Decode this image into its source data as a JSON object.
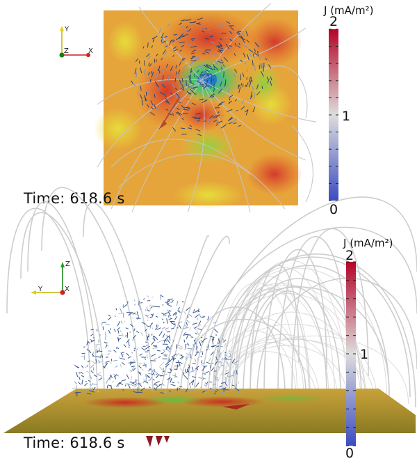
{
  "panels": [
    {
      "id": "top",
      "view": "top-down",
      "time_label": "Time: 618.6 s",
      "colorbar": {
        "title": "J (mA/m²)",
        "min": 0,
        "max": 2,
        "mid": 1,
        "tick_labels": [
          "2",
          "1",
          "0"
        ]
      },
      "axes": {
        "labels": [
          "Y",
          "Z",
          "X"
        ]
      }
    },
    {
      "id": "bottom",
      "view": "side",
      "time_label": "Time: 618.6 s",
      "colorbar": {
        "title": "J (mA/m²)",
        "min": 0,
        "max": 2,
        "mid": 1,
        "tick_labels": [
          "2",
          "1",
          "0"
        ]
      },
      "axes": {
        "labels": [
          "Z",
          "Y",
          "X"
        ]
      }
    }
  ],
  "colors": {
    "colorbar_high": "#b40426",
    "colorbar_mid": "#dddddd",
    "colorbar_low": "#3b4cc0",
    "surface_base": "#e8a23a",
    "field_lines": "#c8c8c8",
    "arrows": "#5577aa"
  }
}
